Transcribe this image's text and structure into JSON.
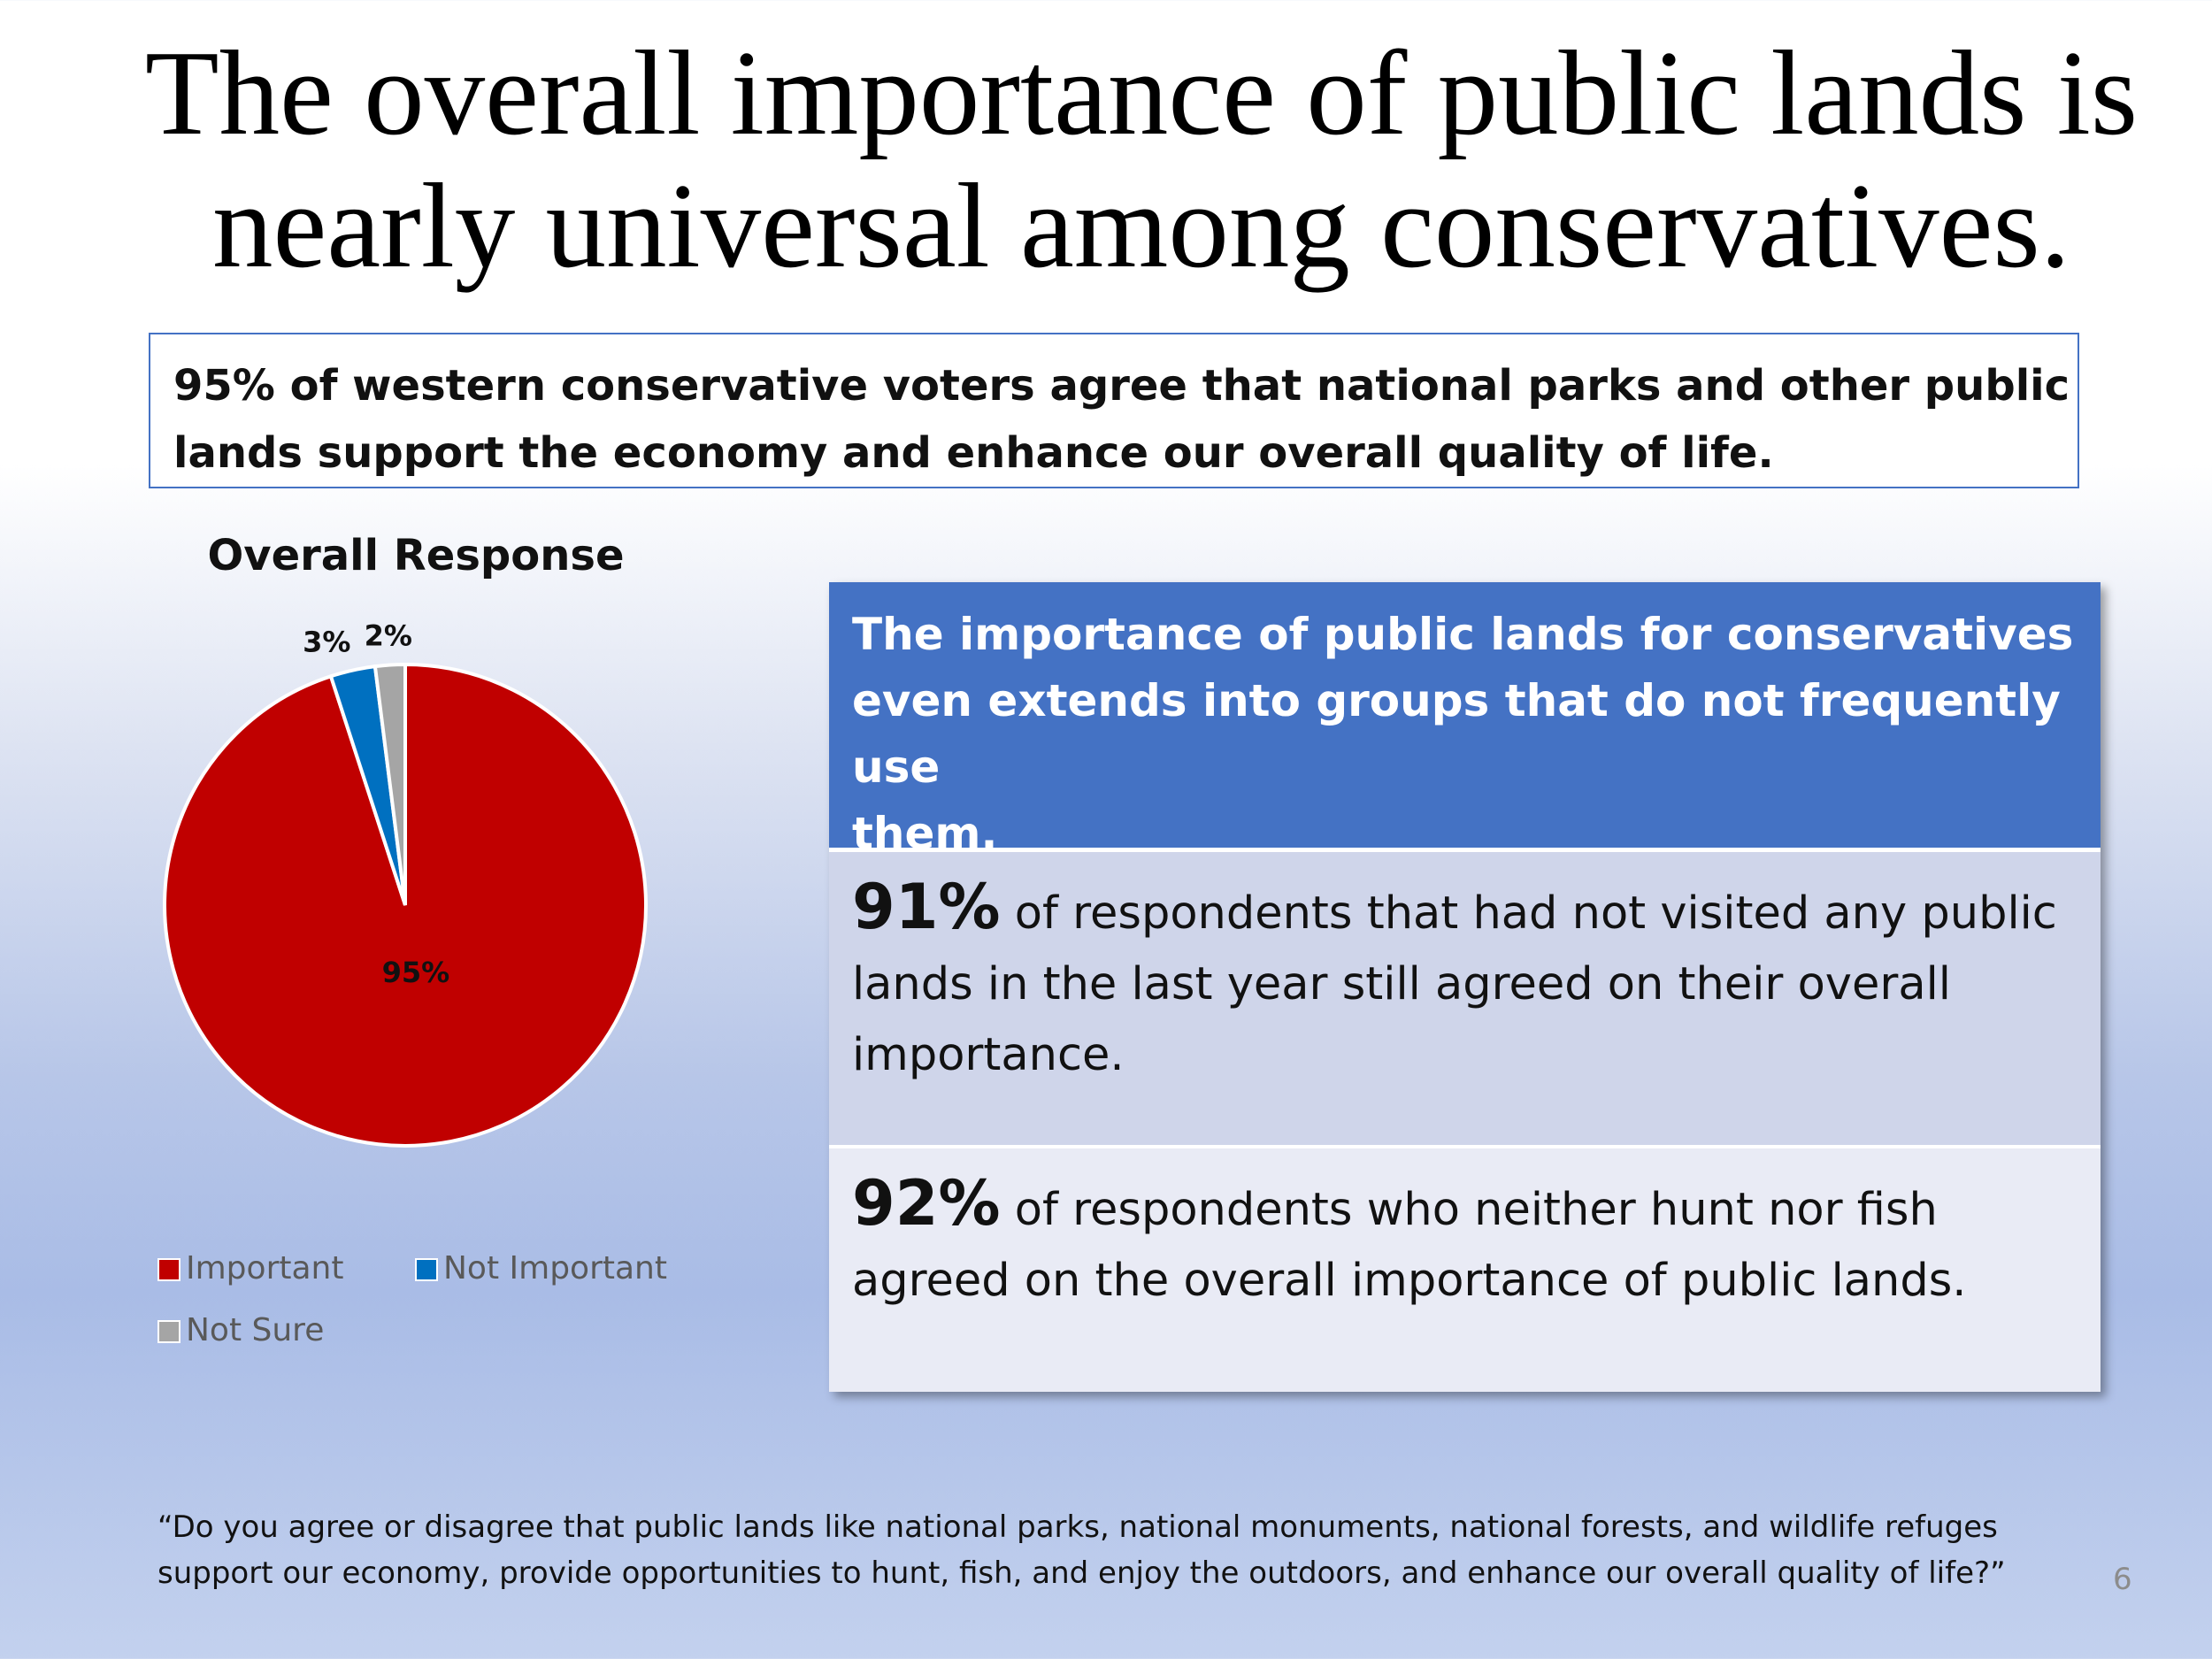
{
  "slide": {
    "title_lines": [
      "The overall importance of public lands is",
      "nearly universal among conservatives."
    ],
    "subtitle_lines": [
      "95% of western conservative voters agree that national parks and other public",
      "lands support the economy and enhance our overall quality of life."
    ],
    "page_number": "6"
  },
  "panel": {
    "heading_lines": [
      "The importance of public lands for conservatives",
      "even extends into groups that do not frequently use",
      "them."
    ],
    "stat1": {
      "value": "91%",
      "lines": [
        "of respondents that had not visited any public",
        "lands in the last year still agreed on their overall",
        "importance."
      ]
    },
    "stat2": {
      "value": "92%",
      "lines": [
        "of respondents who neither hunt nor fish",
        "agreed on the overall importance of public lands."
      ]
    }
  },
  "footnote_lines": [
    "“Do you agree or disagree that public lands like national parks, national monuments, national forests, and wildlife refuges",
    "support our economy, provide opportunities to hunt, fish, and enjoy the outdoors, and enhance our overall quality of life?”"
  ],
  "chart_data": {
    "type": "pie",
    "title": "Overall Response",
    "legend_position": "bottom",
    "categories": [
      "Important",
      "Not Important",
      "Not Sure"
    ],
    "values": [
      95,
      3,
      2
    ],
    "labels": [
      "95%",
      "3%",
      "2%"
    ],
    "colors": [
      "#c00000",
      "#0070c0",
      "#a5a5a5"
    ]
  }
}
